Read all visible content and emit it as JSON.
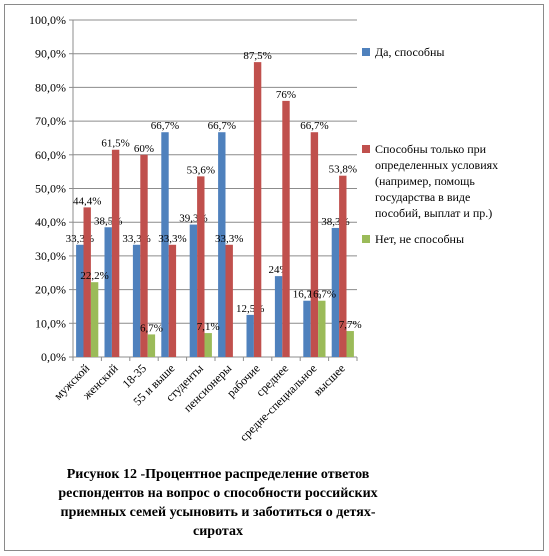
{
  "chart_data": {
    "type": "bar",
    "categories": [
      "мужской",
      "женский",
      "18-35",
      "55 и выше",
      "студенты",
      "пенсионеры",
      "рабочие",
      "среднее",
      "средне-специальное",
      "высшее"
    ],
    "series": [
      {
        "name": "Да, способны",
        "color": "#4f81bd",
        "values": [
          33.3,
          38.5,
          33.3,
          66.7,
          39.3,
          66.7,
          12.5,
          24,
          16.7,
          38.3
        ],
        "labels": [
          "33,3%",
          "38,5%",
          "33,3%",
          "66,7%",
          "39,3%",
          "66,7%",
          "12,5%",
          "24%",
          "16,7%",
          "38,3%"
        ]
      },
      {
        "name": "Способны только при\nопределенных условиях\n(например, помощь\nгосударства в виде\nпособий, выплат и пр.)",
        "color": "#c0504d",
        "values": [
          44.4,
          61.5,
          60,
          33.3,
          53.6,
          33.3,
          87.5,
          76,
          66.7,
          53.8
        ],
        "labels": [
          "44,4%",
          "61,5%",
          "60%",
          "33,3%",
          "53,6%",
          "33,3%",
          "87,5%",
          "76%",
          "66,7%",
          "53,8%"
        ]
      },
      {
        "name": "Нет,  не способны",
        "color": "#9bbb59",
        "values": [
          22.2,
          null,
          6.7,
          null,
          7.1,
          null,
          null,
          null,
          16.7,
          7.7
        ],
        "labels": [
          "22,2%",
          "",
          "6,7%",
          "",
          "7,1%",
          "",
          "",
          "",
          "16,7%",
          "7,7%"
        ]
      }
    ],
    "y_ticks": [
      "0,0%",
      "10,0%",
      "20,0%",
      "30,0%",
      "40,0%",
      "50,0%",
      "60,0%",
      "70,0%",
      "80,0%",
      "90,0%",
      "100,0%"
    ],
    "ylim": [
      0,
      100
    ],
    "grid": true,
    "legend_position": "right"
  },
  "caption": [
    "Рисунок 12 -Процентное распределение ответов",
    "респондентов на вопрос о способности российских",
    "приемных семей усыновить и заботиться о детях-",
    "сиротах"
  ]
}
